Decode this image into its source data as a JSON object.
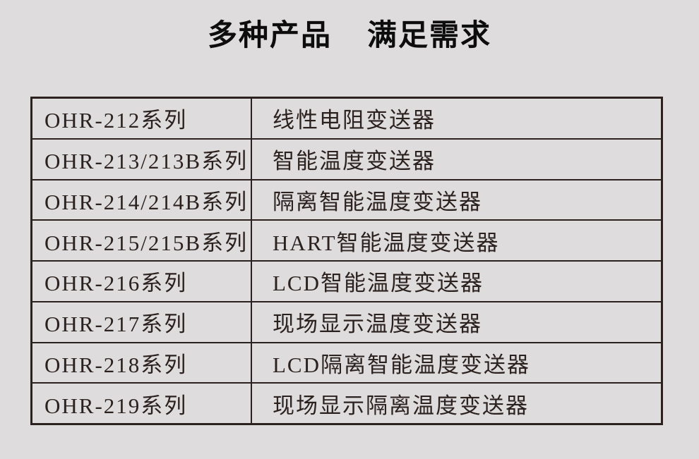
{
  "page": {
    "colors": {
      "bg": "#dedcdd",
      "ink": "#2b211e",
      "title-ink": "#0d0d0d"
    }
  },
  "title": {
    "part1": "多种产品",
    "part2": "满足需求"
  },
  "table": {
    "rows": [
      {
        "series": "OHR-212系列",
        "product": "线性电阻变送器"
      },
      {
        "series": "OHR-213/213B系列",
        "product": "智能温度变送器"
      },
      {
        "series": "OHR-214/214B系列",
        "product": "隔离智能温度变送器"
      },
      {
        "series": "OHR-215/215B系列",
        "product": "HART智能温度变送器"
      },
      {
        "series": "OHR-216系列",
        "product": "LCD智能温度变送器"
      },
      {
        "series": "OHR-217系列",
        "product": "现场显示温度变送器"
      },
      {
        "series": "OHR-218系列",
        "product": "LCD隔离智能温度变送器"
      },
      {
        "series": "OHR-219系列",
        "product": "现场显示隔离温度变送器"
      }
    ]
  }
}
